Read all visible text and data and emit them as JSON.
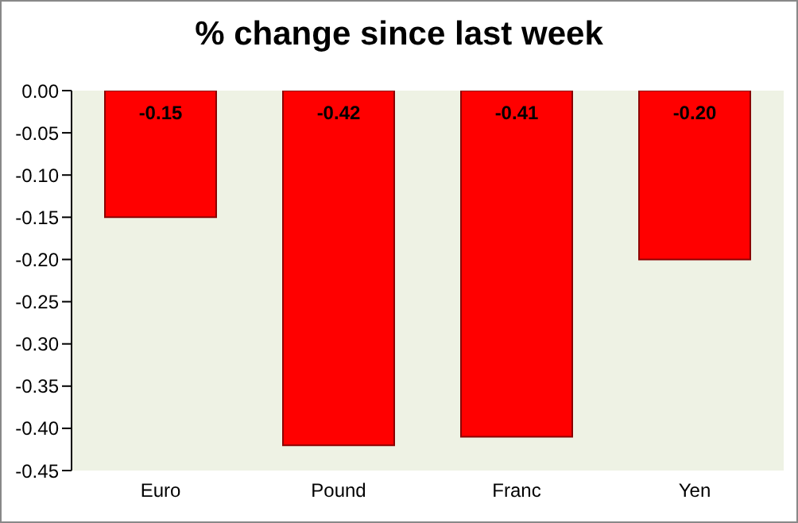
{
  "chart_data": {
    "type": "bar",
    "title": "% change since last week",
    "categories": [
      "Euro",
      "Pound",
      "Franc",
      "Yen"
    ],
    "values": [
      -0.15,
      -0.42,
      -0.41,
      -0.2
    ],
    "value_labels": [
      "-0.15",
      "-0.42",
      "-0.41",
      "-0.20"
    ],
    "color": "#ff0000",
    "ylim": [
      -0.45,
      0
    ],
    "yticks": [
      {
        "value": 0,
        "label": "0.00"
      },
      {
        "value": -0.05,
        "label": "-0.05"
      },
      {
        "value": -0.1,
        "label": "-0.10"
      },
      {
        "value": -0.15,
        "label": "-0.15"
      },
      {
        "value": -0.2,
        "label": "-0.20"
      },
      {
        "value": -0.25,
        "label": "-0.25"
      },
      {
        "value": -0.3,
        "label": "-0.30"
      },
      {
        "value": -0.35,
        "label": "-0.35"
      },
      {
        "value": -0.4,
        "label": "-0.40"
      },
      {
        "value": -0.45,
        "label": "-0.45"
      }
    ],
    "grid": false,
    "legend": false
  }
}
